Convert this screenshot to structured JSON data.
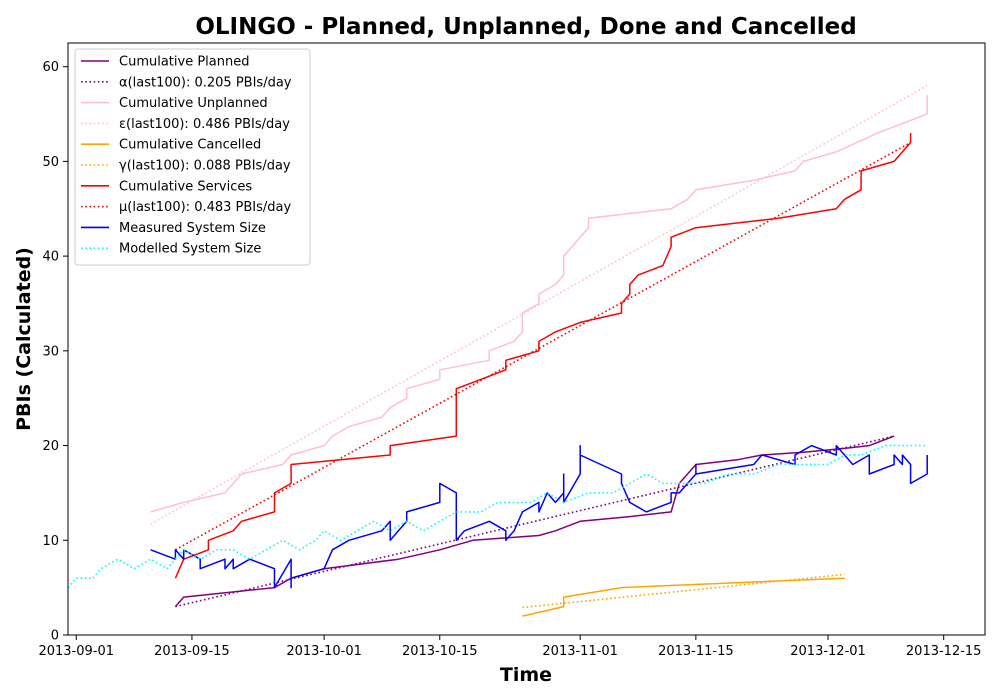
{
  "chart_data": {
    "type": "line",
    "title": "OLINGO - Planned, Unplanned, Done  and Cancelled",
    "xlabel": "Time",
    "ylabel": "PBIs (Calculated)",
    "xlim": [
      "2013-08-31",
      "2013-12-20"
    ],
    "ylim": [
      0,
      62.5
    ],
    "x_ticks": [
      "2013-09-01",
      "2013-09-15",
      "2013-10-01",
      "2013-10-15",
      "2013-11-01",
      "2013-11-15",
      "2013-12-01",
      "2013-12-15"
    ],
    "y_ticks": [
      0,
      10,
      20,
      30,
      40,
      50,
      60
    ],
    "grid": false,
    "legend_position": "top-left",
    "series": [
      {
        "name": "Cumulative Planned",
        "color": "#800080",
        "style": "solid",
        "points": [
          [
            "2013-09-13",
            3
          ],
          [
            "2013-09-14",
            4
          ],
          [
            "2013-09-25",
            5
          ],
          [
            "2013-09-27",
            6
          ],
          [
            "2013-10-01",
            7
          ],
          [
            "2013-10-10",
            8
          ],
          [
            "2013-10-15",
            9
          ],
          [
            "2013-10-19",
            10
          ],
          [
            "2013-10-27",
            10.5
          ],
          [
            "2013-10-29",
            11
          ],
          [
            "2013-11-01",
            12
          ],
          [
            "2013-11-07",
            12.5
          ],
          [
            "2013-11-12",
            13
          ],
          [
            "2013-11-13",
            16
          ],
          [
            "2013-11-15",
            18
          ],
          [
            "2013-11-20",
            18.5
          ],
          [
            "2013-11-23",
            19
          ],
          [
            "2013-11-28",
            19.3
          ],
          [
            "2013-12-03",
            19.7
          ],
          [
            "2013-12-06",
            20
          ],
          [
            "2013-12-09",
            21
          ]
        ]
      },
      {
        "name": "α(last100): 0.205 PBIs/day",
        "color": "#800080",
        "style": "dotted",
        "points": [
          [
            "2013-09-13",
            3
          ],
          [
            "2013-12-09",
            21
          ]
        ]
      },
      {
        "name": "Cumulative Unplanned",
        "color": "#ffc0cb",
        "style": "solid",
        "points": [
          [
            "2013-09-10",
            13
          ],
          [
            "2013-09-14",
            14
          ],
          [
            "2013-09-19",
            15
          ],
          [
            "2013-09-21",
            17
          ],
          [
            "2013-09-26",
            18
          ],
          [
            "2013-09-27",
            19
          ],
          [
            "2013-10-01",
            20
          ],
          [
            "2013-10-02",
            21
          ],
          [
            "2013-10-04",
            22
          ],
          [
            "2013-10-08",
            23
          ],
          [
            "2013-10-09",
            24
          ],
          [
            "2013-10-11",
            25
          ],
          [
            "2013-10-11",
            26
          ],
          [
            "2013-10-15",
            27
          ],
          [
            "2013-10-15",
            28
          ],
          [
            "2013-10-21",
            29
          ],
          [
            "2013-10-21",
            30
          ],
          [
            "2013-10-24",
            31
          ],
          [
            "2013-10-25",
            32
          ],
          [
            "2013-10-25",
            34
          ],
          [
            "2013-10-27",
            35
          ],
          [
            "2013-10-27",
            36
          ],
          [
            "2013-10-29",
            37
          ],
          [
            "2013-10-30",
            38
          ],
          [
            "2013-10-30",
            40
          ],
          [
            "2013-11-01",
            42
          ],
          [
            "2013-11-02",
            43
          ],
          [
            "2013-11-02",
            44
          ],
          [
            "2013-11-12",
            45
          ],
          [
            "2013-11-14",
            46
          ],
          [
            "2013-11-15",
            47
          ],
          [
            "2013-11-22",
            48
          ],
          [
            "2013-11-27",
            49
          ],
          [
            "2013-11-28",
            50
          ],
          [
            "2013-12-02",
            51
          ],
          [
            "2013-12-07",
            53
          ],
          [
            "2013-12-10",
            54
          ],
          [
            "2013-12-13",
            55
          ],
          [
            "2013-12-13",
            57
          ]
        ]
      },
      {
        "name": "ε(last100): 0.486 PBIs/day",
        "color": "#ffc0cb",
        "style": "dotted",
        "points": [
          [
            "2013-09-10",
            11.7
          ],
          [
            "2013-12-13",
            58
          ]
        ]
      },
      {
        "name": "Cumulative Cancelled",
        "color": "#ffa500",
        "style": "solid",
        "points": [
          [
            "2013-10-25",
            2
          ],
          [
            "2013-10-30",
            3
          ],
          [
            "2013-10-30",
            4
          ],
          [
            "2013-11-06",
            5
          ],
          [
            "2013-12-03",
            6
          ]
        ]
      },
      {
        "name": "γ(last100): 0.088 PBIs/day",
        "color": "#ffa500",
        "style": "dotted",
        "points": [
          [
            "2013-10-25",
            2.9
          ],
          [
            "2013-12-03",
            6.4
          ]
        ]
      },
      {
        "name": "Cumulative Services",
        "color": "#ff0000",
        "style": "solid",
        "points": [
          [
            "2013-09-13",
            6
          ],
          [
            "2013-09-14",
            8
          ],
          [
            "2013-09-17",
            9
          ],
          [
            "2013-09-17",
            10
          ],
          [
            "2013-09-20",
            11
          ],
          [
            "2013-09-21",
            12
          ],
          [
            "2013-09-25",
            13
          ],
          [
            "2013-09-25",
            15
          ],
          [
            "2013-09-27",
            16
          ],
          [
            "2013-09-27",
            18
          ],
          [
            "2013-10-09",
            19
          ],
          [
            "2013-10-09",
            20
          ],
          [
            "2013-10-17",
            21
          ],
          [
            "2013-10-17",
            24
          ],
          [
            "2013-10-17",
            26
          ],
          [
            "2013-10-20",
            27
          ],
          [
            "2013-10-23",
            28
          ],
          [
            "2013-10-23",
            29
          ],
          [
            "2013-10-27",
            30
          ],
          [
            "2013-10-27",
            31
          ],
          [
            "2013-10-29",
            32
          ],
          [
            "2013-11-01",
            33
          ],
          [
            "2013-11-06",
            34
          ],
          [
            "2013-11-06",
            35
          ],
          [
            "2013-11-07",
            36
          ],
          [
            "2013-11-07",
            37
          ],
          [
            "2013-11-08",
            38
          ],
          [
            "2013-11-11",
            39
          ],
          [
            "2013-11-12",
            41
          ],
          [
            "2013-11-12",
            42
          ],
          [
            "2013-11-15",
            43
          ],
          [
            "2013-11-25",
            44
          ],
          [
            "2013-12-02",
            45
          ],
          [
            "2013-12-03",
            46
          ],
          [
            "2013-12-05",
            47
          ],
          [
            "2013-12-05",
            49
          ],
          [
            "2013-12-09",
            50
          ],
          [
            "2013-12-10",
            51
          ],
          [
            "2013-12-11",
            52
          ],
          [
            "2013-12-11",
            53
          ]
        ]
      },
      {
        "name": "μ(last100): 0.483 PBIs/day",
        "color": "#ff0000",
        "style": "dotted",
        "points": [
          [
            "2013-09-13",
            9
          ],
          [
            "2013-12-11",
            52
          ]
        ]
      },
      {
        "name": "Measured System Size",
        "color": "#0000ff",
        "style": "solid",
        "points": [
          [
            "2013-09-10",
            9
          ],
          [
            "2013-09-13",
            8
          ],
          [
            "2013-09-13",
            9
          ],
          [
            "2013-09-14",
            8
          ],
          [
            "2013-09-14",
            9
          ],
          [
            "2013-09-16",
            8
          ],
          [
            "2013-09-16",
            7
          ],
          [
            "2013-09-19",
            8
          ],
          [
            "2013-09-19",
            7
          ],
          [
            "2013-09-20",
            8
          ],
          [
            "2013-09-20",
            7
          ],
          [
            "2013-09-22",
            8
          ],
          [
            "2013-09-25",
            7
          ],
          [
            "2013-09-25",
            5
          ],
          [
            "2013-09-27",
            8
          ],
          [
            "2013-09-27",
            5
          ],
          [
            "2013-09-27",
            6
          ],
          [
            "2013-10-01",
            7
          ],
          [
            "2013-10-02",
            9
          ],
          [
            "2013-10-04",
            10
          ],
          [
            "2013-10-08",
            11
          ],
          [
            "2013-10-09",
            12
          ],
          [
            "2013-10-09",
            10
          ],
          [
            "2013-10-11",
            12
          ],
          [
            "2013-10-11",
            13
          ],
          [
            "2013-10-15",
            14
          ],
          [
            "2013-10-15",
            16
          ],
          [
            "2013-10-17",
            15
          ],
          [
            "2013-10-17",
            10
          ],
          [
            "2013-10-18",
            11
          ],
          [
            "2013-10-21",
            12
          ],
          [
            "2013-10-23",
            11
          ],
          [
            "2013-10-23",
            10
          ],
          [
            "2013-10-24",
            11
          ],
          [
            "2013-10-25",
            13
          ],
          [
            "2013-10-27",
            14
          ],
          [
            "2013-10-27",
            13
          ],
          [
            "2013-10-28",
            15
          ],
          [
            "2013-10-29",
            14
          ],
          [
            "2013-10-30",
            15
          ],
          [
            "2013-10-30",
            16
          ],
          [
            "2013-10-30",
            17
          ],
          [
            "2013-10-30",
            14
          ],
          [
            "2013-11-01",
            17
          ],
          [
            "2013-11-01",
            18
          ],
          [
            "2013-11-01",
            20
          ],
          [
            "2013-11-01",
            19
          ],
          [
            "2013-11-06",
            17
          ],
          [
            "2013-11-06",
            16
          ],
          [
            "2013-11-07",
            14
          ],
          [
            "2013-11-09",
            13
          ],
          [
            "2013-11-12",
            14
          ],
          [
            "2013-11-12",
            15
          ],
          [
            "2013-11-13",
            15
          ],
          [
            "2013-11-14",
            16
          ],
          [
            "2013-11-15",
            17
          ],
          [
            "2013-11-15",
            18
          ],
          [
            "2013-11-15",
            17
          ],
          [
            "2013-11-22",
            18
          ],
          [
            "2013-11-23",
            19
          ],
          [
            "2013-11-27",
            18
          ],
          [
            "2013-11-27",
            19
          ],
          [
            "2013-11-29",
            20
          ],
          [
            "2013-12-02",
            19
          ],
          [
            "2013-12-02",
            20
          ],
          [
            "2013-12-04",
            18
          ],
          [
            "2013-12-06",
            19
          ],
          [
            "2013-12-06",
            17
          ],
          [
            "2013-12-09",
            18
          ],
          [
            "2013-12-09",
            19
          ],
          [
            "2013-12-10",
            18
          ],
          [
            "2013-12-10",
            19
          ],
          [
            "2013-12-11",
            18
          ],
          [
            "2013-12-11",
            16
          ],
          [
            "2013-12-13",
            17
          ],
          [
            "2013-12-13",
            19
          ]
        ]
      },
      {
        "name": "Modelled System Size",
        "color": "#00ffff",
        "style": "dotted",
        "points": [
          [
            "2013-08-31",
            5
          ],
          [
            "2013-09-01",
            6
          ],
          [
            "2013-09-03",
            6
          ],
          [
            "2013-09-04",
            7
          ],
          [
            "2013-09-06",
            8
          ],
          [
            "2013-09-08",
            7
          ],
          [
            "2013-09-10",
            8
          ],
          [
            "2013-09-12",
            7
          ],
          [
            "2013-09-14",
            9
          ],
          [
            "2013-09-16",
            8
          ],
          [
            "2013-09-18",
            9
          ],
          [
            "2013-09-20",
            9
          ],
          [
            "2013-09-22",
            8
          ],
          [
            "2013-09-24",
            9
          ],
          [
            "2013-09-26",
            10
          ],
          [
            "2013-09-28",
            9
          ],
          [
            "2013-09-30",
            10
          ],
          [
            "2013-10-01",
            11
          ],
          [
            "2013-10-03",
            10
          ],
          [
            "2013-10-05",
            11
          ],
          [
            "2013-10-07",
            12
          ],
          [
            "2013-10-09",
            11
          ],
          [
            "2013-10-11",
            12
          ],
          [
            "2013-10-13",
            11
          ],
          [
            "2013-10-15",
            12
          ],
          [
            "2013-10-17",
            13
          ],
          [
            "2013-10-20",
            13
          ],
          [
            "2013-10-22",
            14
          ],
          [
            "2013-10-26",
            14
          ],
          [
            "2013-10-28",
            15
          ],
          [
            "2013-10-30",
            14
          ],
          [
            "2013-11-02",
            15
          ],
          [
            "2013-11-05",
            15
          ],
          [
            "2013-11-07",
            16
          ],
          [
            "2013-11-09",
            17
          ],
          [
            "2013-11-11",
            16
          ],
          [
            "2013-11-14",
            16
          ],
          [
            "2013-11-16",
            16
          ],
          [
            "2013-11-19",
            17
          ],
          [
            "2013-11-22",
            17
          ],
          [
            "2013-11-25",
            18
          ],
          [
            "2013-11-28",
            18
          ],
          [
            "2013-12-01",
            18
          ],
          [
            "2013-12-03",
            19
          ],
          [
            "2013-12-05",
            19
          ],
          [
            "2013-12-08",
            20
          ],
          [
            "2013-12-11",
            20
          ],
          [
            "2013-12-13",
            20
          ]
        ]
      }
    ]
  }
}
